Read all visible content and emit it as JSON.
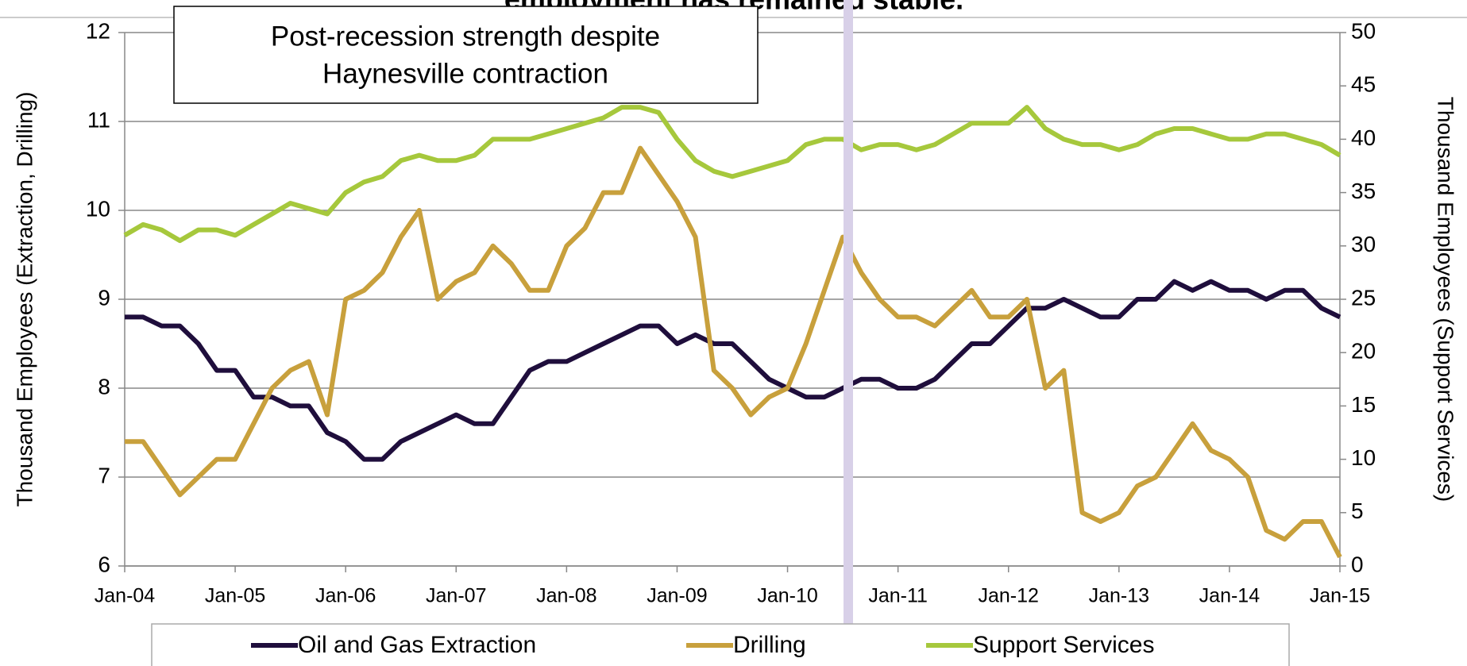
{
  "chart_data": {
    "type": "line",
    "title": "employment has remained stable.",
    "annotation": [
      "Post-recession strength despite",
      "Haynesville contraction"
    ],
    "y_label": "Thousand Employees (Extraction, Drilling)",
    "y2_label": "Thousand Employees (Support Services)",
    "categories": [
      "Jan-04",
      null,
      null,
      null,
      null,
      null,
      "Jan-05",
      null,
      null,
      null,
      null,
      null,
      "Jan-06",
      null,
      null,
      null,
      null,
      null,
      "Jan-07",
      null,
      null,
      null,
      null,
      null,
      "Jan-08",
      null,
      null,
      null,
      null,
      null,
      "Jan-09",
      null,
      null,
      null,
      null,
      null,
      "Jan-10",
      null,
      null,
      null,
      null,
      null,
      "Jan-11",
      null,
      null,
      null,
      null,
      null,
      "Jan-12",
      null,
      null,
      null,
      null,
      null,
      "Jan-13",
      null,
      null,
      null,
      null,
      null,
      "Jan-14",
      null,
      null,
      null,
      null,
      null,
      "Jan-15"
    ],
    "ylim": [
      6,
      12
    ],
    "yticks": [
      6,
      7,
      8,
      9,
      10,
      11,
      12
    ],
    "y2lim": [
      0,
      50
    ],
    "y2ticks": [
      0,
      5,
      10,
      15,
      20,
      25,
      30,
      35,
      40,
      45,
      50
    ],
    "grid": true,
    "series": [
      {
        "name": "Oil and Gas Extraction",
        "color": "#1f0e3c",
        "values": [
          8.8,
          8.8,
          8.7,
          8.7,
          8.5,
          8.2,
          8.2,
          7.9,
          7.9,
          7.8,
          7.8,
          7.5,
          7.4,
          7.2,
          7.2,
          7.4,
          7.5,
          7.6,
          7.7,
          7.6,
          7.6,
          7.9,
          8.2,
          8.3,
          8.3,
          8.4,
          8.5,
          8.6,
          8.7,
          8.7,
          8.5,
          8.6,
          8.5,
          8.5,
          8.3,
          8.1,
          8.0,
          7.9,
          7.9,
          8.0,
          8.1,
          8.1,
          8.0,
          8.0,
          8.1,
          8.3,
          8.5,
          8.5,
          8.7,
          8.9,
          8.9,
          9.0,
          8.9,
          8.8,
          8.8,
          9.0,
          9.0,
          9.2,
          9.1,
          9.2,
          9.1,
          9.1,
          9.0,
          9.1,
          9.1,
          8.9,
          8.8
        ]
      },
      {
        "name": "Drilling",
        "color": "#c8a03c",
        "values": [
          7.4,
          7.4,
          7.1,
          6.8,
          7.0,
          7.2,
          7.2,
          7.6,
          8.0,
          8.2,
          8.3,
          7.7,
          9.0,
          9.1,
          9.3,
          9.7,
          10.0,
          9.0,
          9.2,
          9.3,
          9.6,
          9.4,
          9.1,
          9.1,
          9.6,
          9.8,
          10.2,
          10.2,
          10.7,
          10.4,
          10.1,
          9.7,
          8.2,
          8.0,
          7.7,
          7.9,
          8.0,
          8.5,
          9.1,
          9.7,
          9.3,
          9.0,
          8.8,
          8.8,
          8.7,
          8.9,
          9.1,
          8.8,
          8.8,
          9.0,
          8.0,
          8.2,
          6.6,
          6.5,
          6.6,
          6.9,
          7.0,
          7.3,
          7.6,
          7.3,
          7.2,
          7.0,
          6.4,
          6.3,
          6.5,
          6.5,
          6.1
        ]
      },
      {
        "name": "Support Services",
        "color": "#a6c83c",
        "axis": "y2",
        "values": [
          31,
          32,
          31.5,
          30.5,
          31.5,
          31.5,
          31,
          32,
          33,
          34,
          33.5,
          33,
          35,
          36,
          36.5,
          38,
          38.5,
          38,
          38,
          38.5,
          40,
          40,
          40,
          40.5,
          41,
          41.5,
          42,
          43,
          43,
          42.5,
          40,
          38,
          37,
          36.5,
          37,
          37.5,
          38,
          39.5,
          40,
          40,
          39,
          39.5,
          39.5,
          39,
          39.5,
          40.5,
          41.5,
          41.5,
          41.5,
          43,
          41,
          40,
          39.5,
          39.5,
          39,
          39.5,
          40.5,
          41,
          41,
          40.5,
          40,
          40,
          40.5,
          40.5,
          40,
          39.5,
          38.5
        ]
      }
    ]
  }
}
